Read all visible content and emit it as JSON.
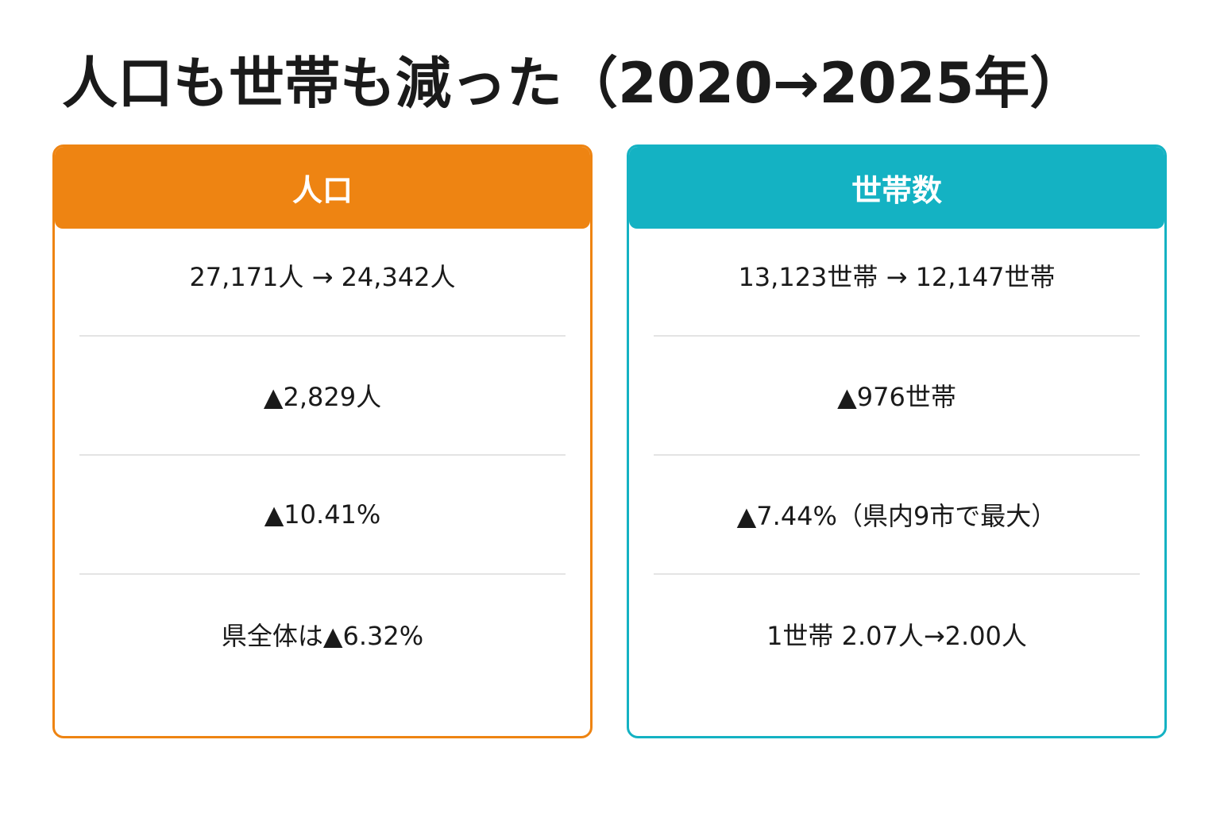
{
  "title": "人口も世帯も減った（2020→2025年）",
  "colors": {
    "population_accent": "#ee8412",
    "households_accent": "#14b2c3"
  },
  "population": {
    "header": "人口",
    "rows": [
      "27,171人 → 24,342人",
      "▲2,829人",
      "▲10.41%",
      "県全体は▲6.32%"
    ]
  },
  "households": {
    "header": "世帯数",
    "rows": [
      "13,123世帯 → 12,147世帯",
      "▲976世帯",
      "▲7.44%（県内9市で最大）",
      "1世帯 2.07人→2.00人"
    ]
  }
}
